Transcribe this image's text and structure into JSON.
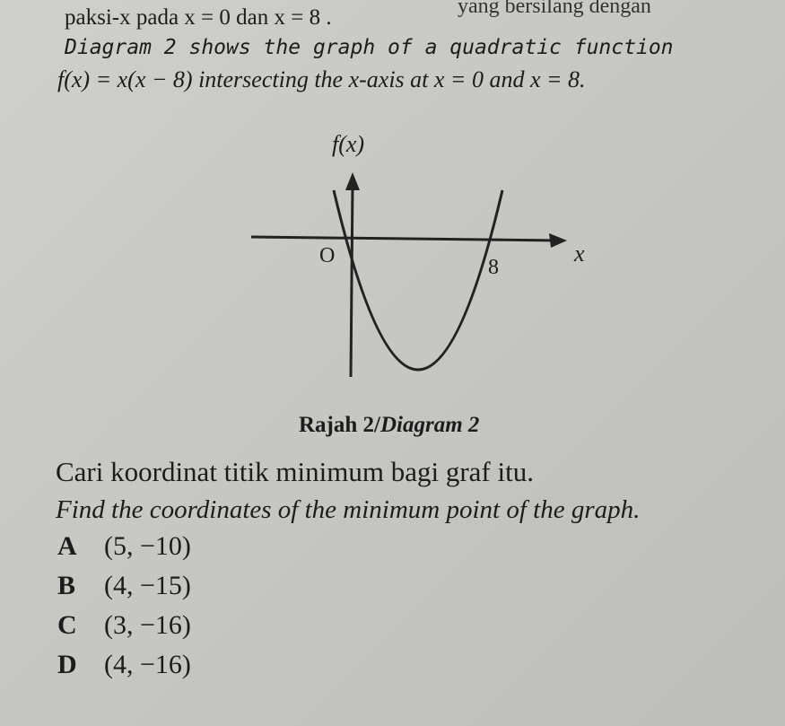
{
  "header": {
    "cut_line_right": "yang bersilang dengan",
    "cut_line_left": "paksi-x pada x = 0 dan x = 8 ."
  },
  "intro": {
    "line1": "Diagram 2 shows the graph of a quadratic function",
    "line2": "f(x) = x(x − 8) intersecting the x-axis at x = 0 and x = 8."
  },
  "diagram": {
    "y_label": "f(x)",
    "origin": "O",
    "x_tick": "8",
    "x_label": "x",
    "caption_malay": "Rajah 2/",
    "caption_english": "Diagram 2"
  },
  "question": {
    "malay": "Cari koordinat titik minimum bagi graf itu.",
    "english": "Find the coordinates of the minimum point of the graph."
  },
  "options": [
    {
      "letter": "A",
      "text": "(5, −10)"
    },
    {
      "letter": "B",
      "text": "(4, −15)"
    },
    {
      "letter": "C",
      "text": "(3, −16)"
    },
    {
      "letter": "D",
      "text": "(4, −16)"
    }
  ]
}
